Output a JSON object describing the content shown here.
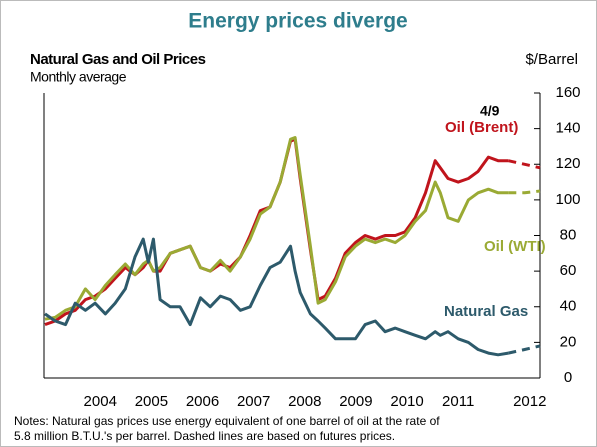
{
  "chart_data": {
    "type": "line",
    "title": "Energy prices diverge",
    "subtitle": "Natural Gas and Oil Prices",
    "subtitle2": "Monthly average",
    "y_label": "$/Barrel",
    "annotation": "4/9",
    "notes": [
      "Notes: Natural gas prices use energy equivalent of one barrel of oil at the rate of",
      "5.8 million B.T.U.'s per barrel. Dashed lines are based on futures prices."
    ],
    "x": [
      2003.42,
      2003.62,
      2003.82,
      2004.01,
      2004.21,
      2004.4,
      2004.6,
      2004.79,
      2004.99,
      2005.18,
      2005.34,
      2005.44,
      2005.54,
      2005.67,
      2005.87,
      2006.06,
      2006.26,
      2006.46,
      2006.65,
      2006.85,
      2007.04,
      2007.24,
      2007.43,
      2007.63,
      2007.82,
      2008.02,
      2008.22,
      2008.31,
      2008.41,
      2008.61,
      2008.76,
      2008.9,
      2009.1,
      2009.29,
      2009.49,
      2009.68,
      2009.88,
      2010.07,
      2010.27,
      2010.46,
      2010.66,
      2010.86,
      2011.05,
      2011.15,
      2011.3,
      2011.5,
      2011.7,
      2011.89,
      2012.09,
      2012.28,
      2012.48
    ],
    "futures_x": [
      2012.48,
      2012.8,
      2013.1
    ],
    "series": [
      {
        "name": "Oil (Brent)",
        "color": "#c0141c",
        "values": [
          30,
          32,
          36,
          38,
          44,
          46,
          50,
          56,
          62,
          58,
          62,
          66,
          60,
          60,
          70,
          72,
          74,
          62,
          60,
          64,
          62,
          68,
          80,
          94,
          96,
          110,
          133,
          134,
          112,
          72,
          44,
          46,
          56,
          70,
          76,
          80,
          78,
          80,
          80,
          82,
          90,
          104,
          122,
          118,
          112,
          110,
          112,
          116,
          124,
          122,
          122
        ],
        "futures": [
          122,
          120,
          118
        ]
      },
      {
        "name": "Oil (WTI)",
        "color": "#9aaa34",
        "values": [
          33,
          34,
          38,
          40,
          50,
          44,
          52,
          58,
          64,
          58,
          64,
          66,
          60,
          62,
          70,
          72,
          74,
          62,
          60,
          66,
          60,
          68,
          78,
          92,
          96,
          110,
          134,
          135,
          114,
          74,
          42,
          44,
          54,
          68,
          74,
          78,
          76,
          78,
          76,
          80,
          88,
          94,
          110,
          104,
          90,
          88,
          100,
          104,
          106,
          104,
          104
        ],
        "futures": [
          104,
          104,
          105
        ]
      },
      {
        "name": "Natural Gas",
        "color": "#2d5a6b",
        "values": [
          36,
          32,
          30,
          42,
          38,
          42,
          36,
          42,
          50,
          68,
          78,
          65,
          78,
          44,
          40,
          40,
          30,
          45,
          40,
          46,
          44,
          38,
          40,
          52,
          62,
          65,
          74,
          60,
          48,
          36,
          32,
          28,
          22,
          22,
          22,
          30,
          32,
          26,
          28,
          26,
          24,
          22,
          26,
          24,
          26,
          22,
          20,
          16,
          14,
          13,
          14
        ],
        "futures": [
          14,
          16,
          18
        ]
      }
    ],
    "xlim": [
      2003.4,
      2013.1
    ],
    "xticks": [
      {
        "value": 2004.5,
        "label": "2004"
      },
      {
        "value": 2005.5,
        "label": "2005"
      },
      {
        "value": 2006.5,
        "label": "2006"
      },
      {
        "value": 2007.5,
        "label": "2007"
      },
      {
        "value": 2008.5,
        "label": "2008"
      },
      {
        "value": 2009.5,
        "label": "2009"
      },
      {
        "value": 2010.5,
        "label": "2010"
      },
      {
        "value": 2011.5,
        "label": "2011"
      },
      {
        "value": 2012.9,
        "label": "2012"
      }
    ],
    "ylim": [
      0,
      160
    ],
    "yticks": [
      0,
      20,
      40,
      60,
      80,
      100,
      120,
      140,
      160
    ],
    "grid": false
  }
}
